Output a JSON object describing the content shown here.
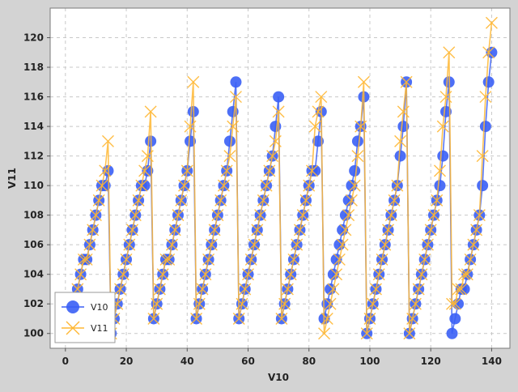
{
  "chart_data": {
    "type": "scatter",
    "title": "",
    "xlabel": "V10",
    "ylabel": "V11",
    "xlim": [
      -5,
      146
    ],
    "ylim": [
      99,
      122
    ],
    "x_ticks": [
      0,
      20,
      40,
      60,
      80,
      100,
      120,
      140
    ],
    "y_ticks": [
      100,
      102,
      104,
      106,
      108,
      110,
      112,
      114,
      116,
      118,
      120
    ],
    "grid": true,
    "legend_position": "bottom-left",
    "series": [
      {
        "name": "V10",
        "color": "#3a5ff5",
        "marker": "circle",
        "points": [
          [
            4,
            103
          ],
          [
            5,
            104
          ],
          [
            6,
            105
          ],
          [
            7,
            105
          ],
          [
            8,
            106
          ],
          [
            9,
            107
          ],
          [
            10,
            108
          ],
          [
            11,
            109
          ],
          [
            12,
            110
          ],
          [
            13,
            110
          ],
          [
            14,
            111
          ],
          [
            15,
            100
          ],
          [
            16,
            101
          ],
          [
            17,
            102
          ],
          [
            18,
            103
          ],
          [
            19,
            104
          ],
          [
            20,
            105
          ],
          [
            21,
            106
          ],
          [
            22,
            107
          ],
          [
            23,
            108
          ],
          [
            24,
            109
          ],
          [
            25,
            110
          ],
          [
            26,
            110
          ],
          [
            27,
            111
          ],
          [
            28,
            113
          ],
          [
            29,
            101
          ],
          [
            30,
            102
          ],
          [
            31,
            103
          ],
          [
            32,
            104
          ],
          [
            33,
            105
          ],
          [
            34,
            105
          ],
          [
            35,
            106
          ],
          [
            36,
            107
          ],
          [
            37,
            108
          ],
          [
            38,
            109
          ],
          [
            39,
            110
          ],
          [
            40,
            111
          ],
          [
            41,
            113
          ],
          [
            42,
            115
          ],
          [
            43,
            101
          ],
          [
            44,
            102
          ],
          [
            45,
            103
          ],
          [
            46,
            104
          ],
          [
            47,
            105
          ],
          [
            48,
            106
          ],
          [
            49,
            107
          ],
          [
            50,
            108
          ],
          [
            51,
            109
          ],
          [
            52,
            110
          ],
          [
            53,
            111
          ],
          [
            54,
            113
          ],
          [
            55,
            115
          ],
          [
            56,
            117
          ],
          [
            57,
            101
          ],
          [
            58,
            102
          ],
          [
            59,
            103
          ],
          [
            60,
            104
          ],
          [
            61,
            105
          ],
          [
            62,
            106
          ],
          [
            63,
            107
          ],
          [
            64,
            108
          ],
          [
            65,
            109
          ],
          [
            66,
            110
          ],
          [
            67,
            111
          ],
          [
            68,
            112
          ],
          [
            69,
            114
          ],
          [
            70,
            116
          ],
          [
            71,
            101
          ],
          [
            72,
            102
          ],
          [
            73,
            103
          ],
          [
            74,
            104
          ],
          [
            75,
            105
          ],
          [
            76,
            106
          ],
          [
            77,
            107
          ],
          [
            78,
            108
          ],
          [
            79,
            109
          ],
          [
            80,
            110
          ],
          [
            81,
            111
          ],
          [
            82,
            111
          ],
          [
            83,
            113
          ],
          [
            84,
            115
          ],
          [
            85,
            101
          ],
          [
            86,
            102
          ],
          [
            87,
            103
          ],
          [
            88,
            104
          ],
          [
            89,
            105
          ],
          [
            90,
            106
          ],
          [
            91,
            107
          ],
          [
            92,
            108
          ],
          [
            93,
            109
          ],
          [
            94,
            110
          ],
          [
            95,
            111
          ],
          [
            96,
            113
          ],
          [
            97,
            114
          ],
          [
            98,
            116
          ],
          [
            99,
            100
          ],
          [
            100,
            101
          ],
          [
            101,
            102
          ],
          [
            102,
            103
          ],
          [
            103,
            104
          ],
          [
            104,
            105
          ],
          [
            105,
            106
          ],
          [
            106,
            107
          ],
          [
            107,
            108
          ],
          [
            108,
            109
          ],
          [
            109,
            110
          ],
          [
            110,
            112
          ],
          [
            111,
            114
          ],
          [
            112,
            117
          ],
          [
            113,
            100
          ],
          [
            114,
            101
          ],
          [
            115,
            102
          ],
          [
            116,
            103
          ],
          [
            117,
            104
          ],
          [
            118,
            105
          ],
          [
            119,
            106
          ],
          [
            120,
            107
          ],
          [
            121,
            108
          ],
          [
            122,
            109
          ],
          [
            123,
            110
          ],
          [
            124,
            112
          ],
          [
            125,
            115
          ],
          [
            126,
            117
          ],
          [
            127,
            100
          ],
          [
            128,
            101
          ],
          [
            129,
            102
          ],
          [
            130,
            103
          ],
          [
            131,
            103
          ],
          [
            132,
            104
          ],
          [
            133,
            105
          ],
          [
            134,
            106
          ],
          [
            135,
            107
          ],
          [
            136,
            108
          ],
          [
            137,
            110
          ],
          [
            138,
            114
          ],
          [
            139,
            117
          ],
          [
            140,
            119
          ]
        ]
      },
      {
        "name": "V11",
        "color": "#ffb733",
        "marker": "x",
        "points": [
          [
            4,
            103
          ],
          [
            5,
            104
          ],
          [
            6,
            105
          ],
          [
            7,
            105
          ],
          [
            8,
            106
          ],
          [
            9,
            107
          ],
          [
            10,
            108
          ],
          [
            11,
            109
          ],
          [
            12,
            110
          ],
          [
            13,
            111
          ],
          [
            14,
            113
          ],
          [
            15,
            100
          ],
          [
            16,
            101
          ],
          [
            17,
            102
          ],
          [
            18,
            103
          ],
          [
            19,
            104
          ],
          [
            20,
            105
          ],
          [
            21,
            106
          ],
          [
            22,
            107
          ],
          [
            23,
            108
          ],
          [
            24,
            109
          ],
          [
            25,
            110
          ],
          [
            26,
            111
          ],
          [
            27,
            112
          ],
          [
            28,
            115
          ],
          [
            29,
            101
          ],
          [
            30,
            102
          ],
          [
            31,
            103
          ],
          [
            32,
            104
          ],
          [
            33,
            105
          ],
          [
            34,
            105
          ],
          [
            35,
            106
          ],
          [
            36,
            107
          ],
          [
            37,
            108
          ],
          [
            38,
            109
          ],
          [
            39,
            110
          ],
          [
            40,
            111
          ],
          [
            41,
            114
          ],
          [
            42,
            117
          ],
          [
            43,
            101
          ],
          [
            44,
            102
          ],
          [
            45,
            103
          ],
          [
            46,
            104
          ],
          [
            47,
            105
          ],
          [
            48,
            106
          ],
          [
            49,
            107
          ],
          [
            50,
            108
          ],
          [
            51,
            109
          ],
          [
            52,
            110
          ],
          [
            53,
            111
          ],
          [
            54,
            112
          ],
          [
            55,
            114
          ],
          [
            56,
            116
          ],
          [
            57,
            101
          ],
          [
            58,
            102
          ],
          [
            59,
            103
          ],
          [
            60,
            104
          ],
          [
            61,
            105
          ],
          [
            62,
            106
          ],
          [
            63,
            107
          ],
          [
            64,
            108
          ],
          [
            65,
            109
          ],
          [
            66,
            110
          ],
          [
            67,
            111
          ],
          [
            68,
            112
          ],
          [
            69,
            113
          ],
          [
            70,
            115
          ],
          [
            71,
            101
          ],
          [
            72,
            102
          ],
          [
            73,
            103
          ],
          [
            74,
            104
          ],
          [
            75,
            105
          ],
          [
            76,
            106
          ],
          [
            77,
            107
          ],
          [
            78,
            108
          ],
          [
            79,
            109
          ],
          [
            80,
            110
          ],
          [
            81,
            111
          ],
          [
            82,
            114
          ],
          [
            83,
            115
          ],
          [
            84,
            116
          ],
          [
            85,
            100
          ],
          [
            86,
            101
          ],
          [
            87,
            102
          ],
          [
            88,
            103
          ],
          [
            89,
            104
          ],
          [
            90,
            105
          ],
          [
            91,
            106
          ],
          [
            92,
            107
          ],
          [
            93,
            108
          ],
          [
            94,
            109
          ],
          [
            95,
            110
          ],
          [
            96,
            112
          ],
          [
            97,
            114
          ],
          [
            98,
            117
          ],
          [
            99,
            100
          ],
          [
            100,
            101
          ],
          [
            101,
            102
          ],
          [
            102,
            103
          ],
          [
            103,
            104
          ],
          [
            104,
            105
          ],
          [
            105,
            106
          ],
          [
            106,
            107
          ],
          [
            107,
            108
          ],
          [
            108,
            109
          ],
          [
            109,
            110
          ],
          [
            110,
            113
          ],
          [
            111,
            115
          ],
          [
            112,
            117
          ],
          [
            113,
            100
          ],
          [
            114,
            101
          ],
          [
            115,
            102
          ],
          [
            116,
            103
          ],
          [
            117,
            104
          ],
          [
            118,
            105
          ],
          [
            119,
            106
          ],
          [
            120,
            107
          ],
          [
            121,
            108
          ],
          [
            122,
            109
          ],
          [
            123,
            111
          ],
          [
            124,
            114
          ],
          [
            125,
            116
          ],
          [
            126,
            119
          ],
          [
            127,
            102
          ],
          [
            128,
            102
          ],
          [
            129,
            103
          ],
          [
            130,
            103
          ],
          [
            131,
            104
          ],
          [
            132,
            104
          ],
          [
            133,
            105
          ],
          [
            134,
            106
          ],
          [
            135,
            107
          ],
          [
            136,
            108
          ],
          [
            137,
            112
          ],
          [
            138,
            116
          ],
          [
            139,
            119
          ],
          [
            140,
            121
          ]
        ]
      }
    ]
  }
}
